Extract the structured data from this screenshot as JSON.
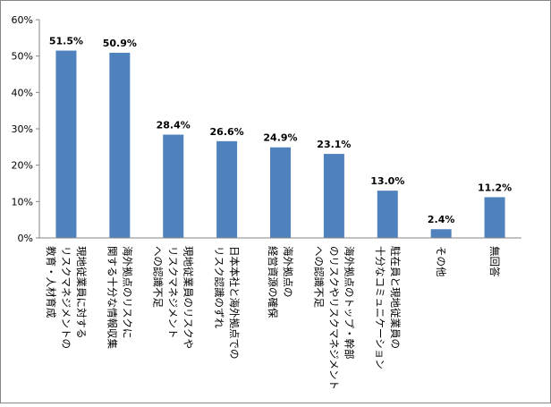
{
  "chart_data": {
    "type": "bar",
    "title": "",
    "xlabel": "",
    "ylabel": "",
    "ylim": [
      0,
      60
    ],
    "ytick_step": 10,
    "tick_suffix": "%",
    "grid": false,
    "legend": "none",
    "colors": {
      "bar": "#4f81bd",
      "axis": "#868686",
      "frame": "#868686"
    },
    "categories": [
      [
        "現地従業員に対する",
        "リスクマネジメントの",
        "教育・人材育成"
      ],
      [
        "海外拠点のリスクに",
        "関する十分な情報収集"
      ],
      [
        "現地従業員のリスクや",
        "リスクマネジメント",
        "への認識不足"
      ],
      [
        "日本本社と海外拠点での",
        "リスク認識のずれ"
      ],
      [
        "海外拠点の",
        "経営資源の確保"
      ],
      [
        "海外拠点のトップ・幹部",
        "のリスクやリスクマネジメント",
        "への認識不足"
      ],
      [
        "駐在員と現地従業員の",
        "十分なコミュニケーション"
      ],
      [
        "その他"
      ],
      [
        "無回答"
      ]
    ],
    "values": [
      51.5,
      50.9,
      28.4,
      26.6,
      24.9,
      23.1,
      13.0,
      2.4,
      11.2
    ],
    "value_labels": [
      "51.5%",
      "50.9%",
      "28.4%",
      "26.6%",
      "24.9%",
      "23.1%",
      "13.0%",
      "2.4%",
      "11.2%"
    ]
  }
}
